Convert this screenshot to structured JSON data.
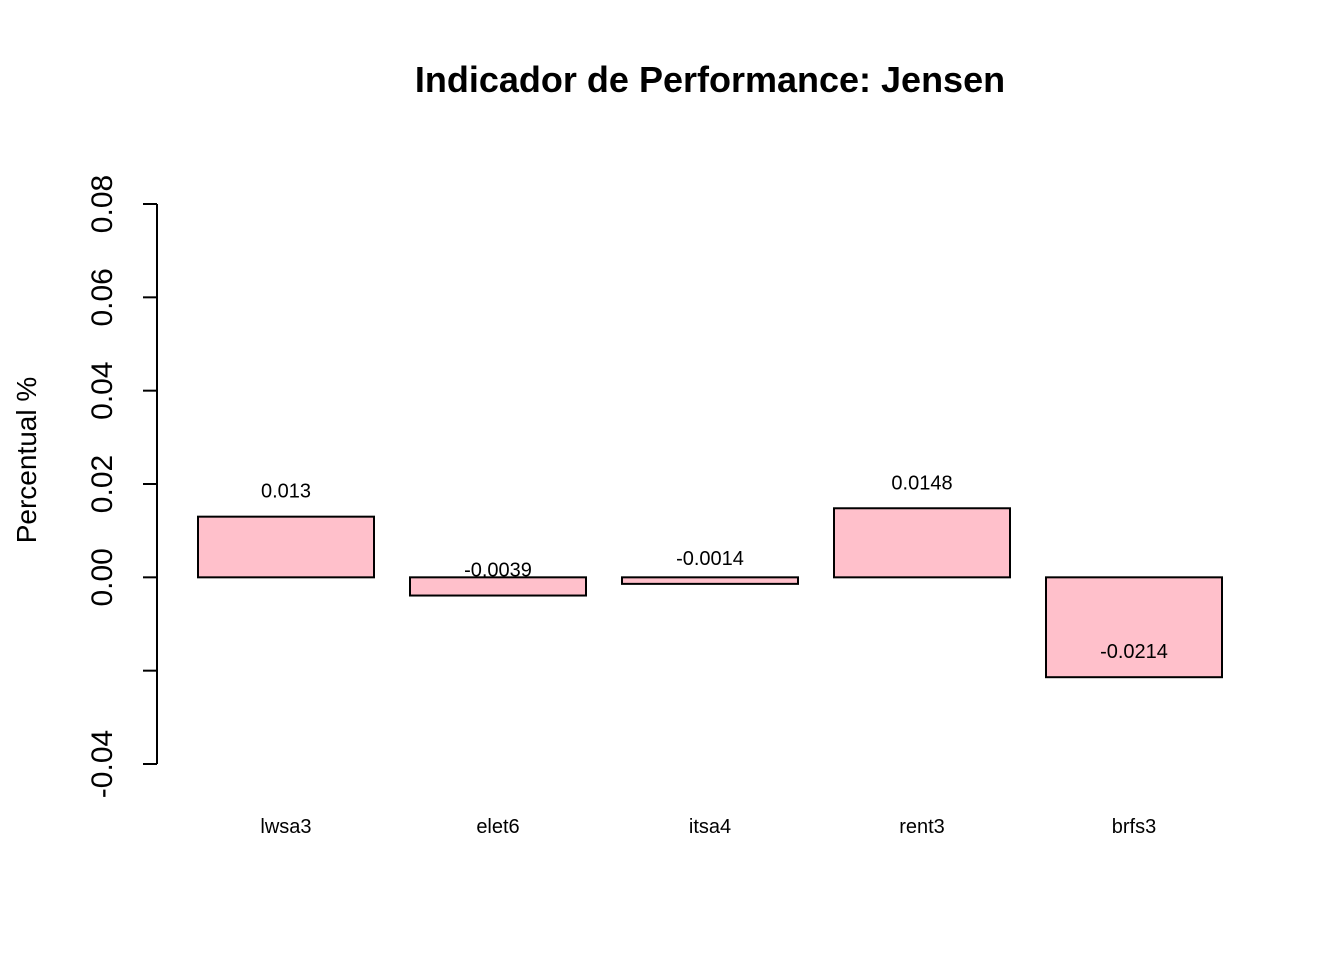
{
  "chart_data": {
    "type": "bar",
    "title": "Indicador de Performance: Jensen",
    "xlabel": "",
    "ylabel": "Percentual %",
    "categories": [
      "lwsa3",
      "elet6",
      "itsa4",
      "rent3",
      "brfs3"
    ],
    "values": [
      0.013,
      -0.0039,
      -0.0014,
      0.0148,
      -0.0214
    ],
    "data_labels": [
      "0.013",
      "-0.0039",
      "-0.0014",
      "0.0148",
      "-0.0214"
    ],
    "ylim": [
      -0.04,
      0.08
    ],
    "y_ticks": [
      -0.04,
      -0.02,
      0.0,
      0.02,
      0.04,
      0.06,
      0.08
    ],
    "y_tick_labels": [
      "-0.04",
      "",
      "0.00",
      "0.02",
      "0.04",
      "0.06",
      "0.08"
    ],
    "grid": false,
    "legend": "none",
    "bar_color": "#ffc0cb",
    "edge_color": "#000000"
  }
}
